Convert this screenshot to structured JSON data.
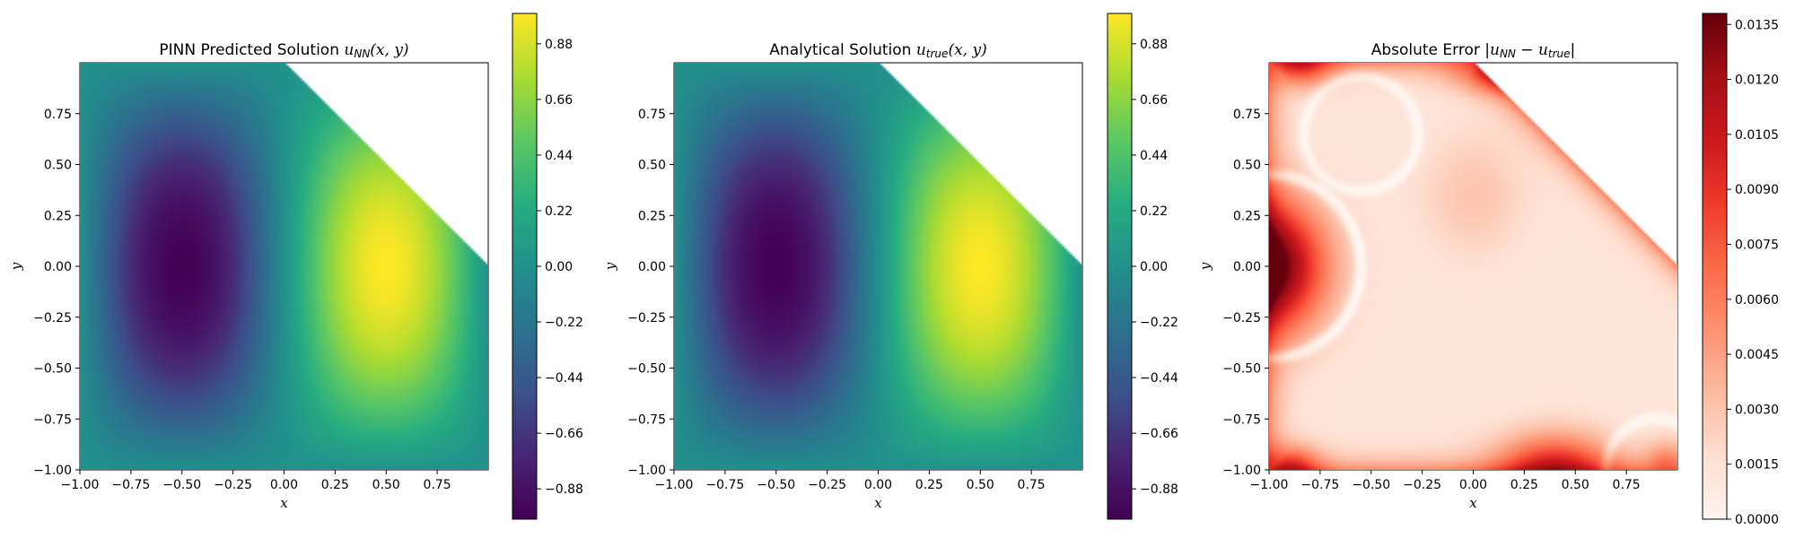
{
  "figure": {
    "background": "#ffffff"
  },
  "chart_data": [
    {
      "type": "heatmap",
      "title": "PINN Predicted Solution u_{NN}(x, y)",
      "title_parts": {
        "pre": "PINN Predicted Solution ",
        "var": "u",
        "sub": "NN",
        "post": "(x, y)"
      },
      "xlabel": "x",
      "ylabel": "y",
      "xlim": [
        -1.0,
        1.0
      ],
      "ylim": [
        -1.0,
        1.0
      ],
      "xticks": [
        "-1.00",
        "-0.75",
        "-0.50",
        "-0.25",
        "0.00",
        "0.25",
        "0.50",
        "0.75"
      ],
      "xtick_values": [
        -1.0,
        -0.75,
        -0.5,
        -0.25,
        0.0,
        0.25,
        0.5,
        0.75
      ],
      "yticks": [
        "-1.00",
        "-0.75",
        "-0.50",
        "-0.25",
        "0.00",
        "0.25",
        "0.50",
        "0.75"
      ],
      "ytick_values": [
        -1.0,
        -0.75,
        -0.5,
        -0.25,
        0.0,
        0.25,
        0.5,
        0.75
      ],
      "field": "u = sin(pi*x) * cos(pi*y/2)",
      "domain_mask": "x + y <= 1",
      "colormap": "viridis",
      "colorbar": {
        "range": [
          -1.0,
          1.0
        ],
        "ticks": [
          "-0.88",
          "-0.66",
          "-0.44",
          "-0.22",
          "0.00",
          "0.22",
          "0.44",
          "0.66",
          "0.88"
        ],
        "tick_values": [
          -0.88,
          -0.66,
          -0.44,
          -0.22,
          0.0,
          0.22,
          0.44,
          0.66,
          0.88
        ]
      },
      "grid": false
    },
    {
      "type": "heatmap",
      "title": "Analytical Solution u_{true}(x, y)",
      "title_parts": {
        "pre": "Analytical Solution ",
        "var": "u",
        "sub": "true",
        "post": "(x, y)"
      },
      "xlabel": "x",
      "ylabel": "y",
      "xlim": [
        -1.0,
        1.0
      ],
      "ylim": [
        -1.0,
        1.0
      ],
      "xticks": [
        "-1.00",
        "-0.75",
        "-0.50",
        "-0.25",
        "0.00",
        "0.25",
        "0.50",
        "0.75"
      ],
      "xtick_values": [
        -1.0,
        -0.75,
        -0.5,
        -0.25,
        0.0,
        0.25,
        0.5,
        0.75
      ],
      "yticks": [
        "-1.00",
        "-0.75",
        "-0.50",
        "-0.25",
        "0.00",
        "0.25",
        "0.50",
        "0.75"
      ],
      "ytick_values": [
        -1.0,
        -0.75,
        -0.5,
        -0.25,
        0.0,
        0.25,
        0.5,
        0.75
      ],
      "field": "u = sin(pi*x) * cos(pi*y/2)",
      "domain_mask": "x + y <= 1",
      "colormap": "viridis",
      "colorbar": {
        "range": [
          -1.0,
          1.0
        ],
        "ticks": [
          "-0.88",
          "-0.66",
          "-0.44",
          "-0.22",
          "0.00",
          "0.22",
          "0.44",
          "0.66",
          "0.88"
        ],
        "tick_values": [
          -0.88,
          -0.66,
          -0.44,
          -0.22,
          0.0,
          0.22,
          0.44,
          0.66,
          0.88
        ]
      },
      "grid": false
    },
    {
      "type": "heatmap",
      "title": "Absolute Error |u_{NN} - u_{true}|",
      "title_parts": {
        "pre": "Absolute Error |",
        "var": "u",
        "sub": "NN",
        "mid": " − ",
        "var2": "u",
        "sub2": "true",
        "post": "|"
      },
      "xlabel": "x",
      "ylabel": "y",
      "xlim": [
        -1.0,
        1.0
      ],
      "ylim": [
        -1.0,
        1.0
      ],
      "xticks": [
        "-1.00",
        "-0.75",
        "-0.50",
        "-0.25",
        "0.00",
        "0.25",
        "0.50",
        "0.75"
      ],
      "xtick_values": [
        -1.0,
        -0.75,
        -0.5,
        -0.25,
        0.0,
        0.25,
        0.5,
        0.75
      ],
      "yticks": [
        "-1.00",
        "-0.75",
        "-0.50",
        "-0.25",
        "0.00",
        "0.25",
        "0.50",
        "0.75"
      ],
      "ytick_values": [
        -1.0,
        -0.75,
        -0.5,
        -0.25,
        0.0,
        0.25,
        0.5,
        0.75
      ],
      "field": "absolute error, peaks near the domain boundary",
      "domain_mask": "x + y <= 1",
      "colormap": "reds",
      "colorbar": {
        "range": [
          0.0,
          0.0138
        ],
        "ticks": [
          "0.0000",
          "0.0015",
          "0.0030",
          "0.0045",
          "0.0060",
          "0.0075",
          "0.0090",
          "0.0105",
          "0.0120",
          "0.0135"
        ],
        "tick_values": [
          0.0,
          0.0015,
          0.003,
          0.0045,
          0.006,
          0.0075,
          0.009,
          0.0105,
          0.012,
          0.0135
        ]
      },
      "grid": false
    }
  ]
}
